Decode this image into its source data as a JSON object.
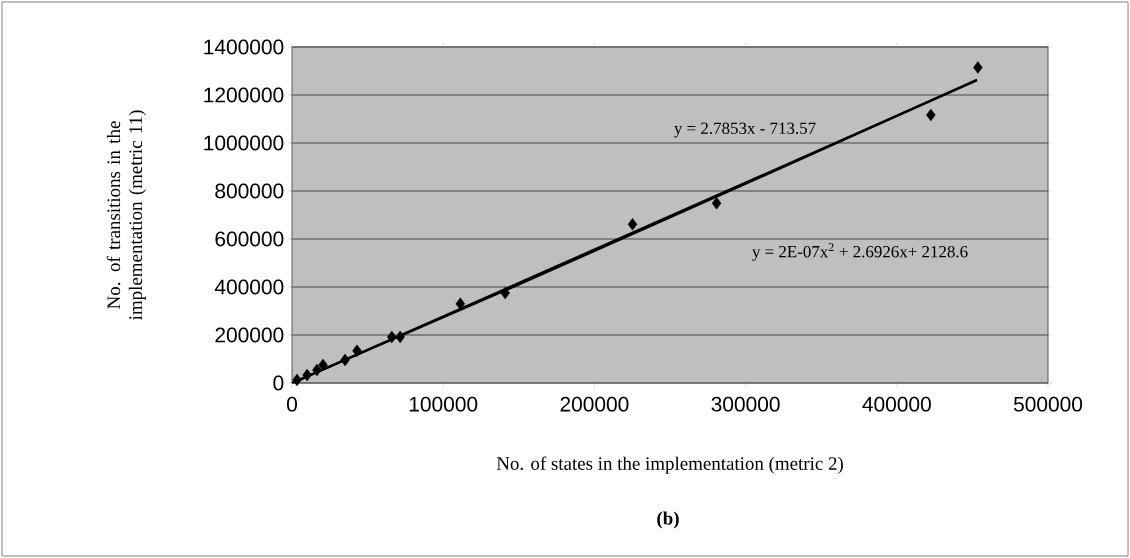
{
  "chart_data": {
    "type": "scatter",
    "xlabel": "No. of states in the implementation (metric 2)",
    "ylabel": "No. of transitions in the implementation (metric 11)",
    "series": [
      {
        "color": "#000000",
        "x": [
          3300,
          10000,
          16500,
          20500,
          35100,
          43000,
          66000,
          71500,
          111300,
          141000,
          225200,
          280800,
          422500,
          453600
        ],
        "values": [
          13000,
          33000,
          54000,
          75000,
          96000,
          134000,
          192000,
          192000,
          330000,
          375000,
          661000,
          749000,
          1117000,
          1315000
        ]
      },
      {
        "type": "line",
        "marker": "none",
        "color": "#000000",
        "x": [
          5000,
          453000
        ],
        "values": [
          13000,
          1261000
        ]
      },
      {
        "type": "line",
        "marker": "none",
        "color": "#000000",
        "x": [
          0,
          150000,
          300000,
          453000
        ],
        "values": [
          0,
          410000,
          830000,
          1263000
        ]
      }
    ],
    "annotations": [
      "y = 2.7853x - 713.57",
      "y = 2E-07x$^{2}$ + 2.6926x+ 2128.6",
      "(b)"
    ],
    "xlim": [
      0,
      500000
    ],
    "ylim": [
      0,
      1400000
    ],
    "xticks": [
      0,
      100000,
      200000,
      300000,
      400000,
      500000
    ],
    "yticks": [
      0,
      200000,
      400000,
      600000,
      800000,
      1000000,
      1200000,
      1400000
    ],
    "grid": "y",
    "marker": "diamond"
  }
}
